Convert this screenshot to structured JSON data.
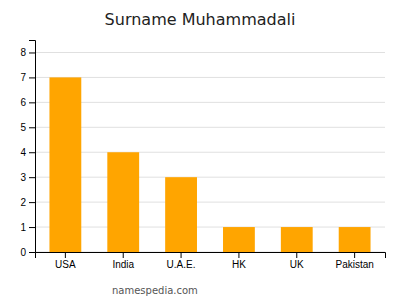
{
  "chart_data": {
    "type": "bar",
    "title": "Surname Muhammadali",
    "categories": [
      "USA",
      "India",
      "U.A.E.",
      "HK",
      "UK",
      "Pakistan"
    ],
    "values": [
      7,
      4,
      3,
      1,
      1,
      1
    ],
    "color": "#FFA500",
    "ylim": [
      0,
      8.5
    ],
    "yticks": [
      0,
      1,
      2,
      3,
      4,
      5,
      6,
      7,
      8
    ],
    "grid": true,
    "annotations": [
      "namespedia.com"
    ]
  }
}
